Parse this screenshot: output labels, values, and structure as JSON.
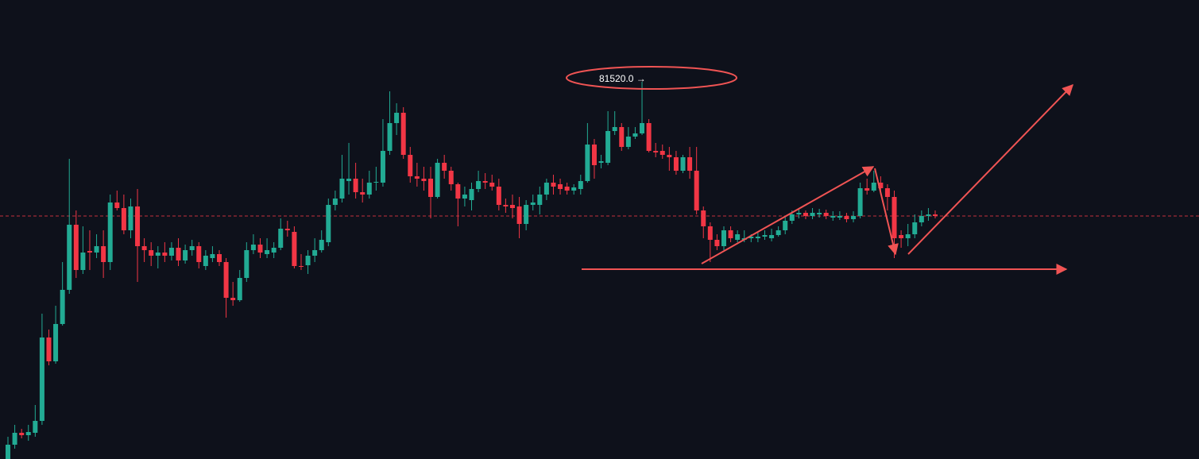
{
  "chart_data": {
    "type": "candlestick",
    "annotation": "81520.0 →",
    "colors": {
      "up": "#22ab94",
      "down": "#f23645"
    },
    "ylim": [
      76770,
      82550
    ],
    "price_line": 79830,
    "ohlc": [
      [
        76770,
        77050,
        76770,
        76950
      ],
      [
        76950,
        77200,
        76900,
        77100
      ],
      [
        77100,
        77150,
        77030,
        77070
      ],
      [
        77070,
        77200,
        77000,
        77110
      ],
      [
        77100,
        77450,
        77050,
        77250
      ],
      [
        77250,
        78600,
        77200,
        78300
      ],
      [
        78300,
        78400,
        77950,
        78000
      ],
      [
        78000,
        78700,
        77970,
        78470
      ],
      [
        78470,
        79250,
        78450,
        78900
      ],
      [
        78900,
        80550,
        78850,
        79720
      ],
      [
        79720,
        79900,
        79050,
        79150
      ],
      [
        79150,
        79700,
        79100,
        79370
      ],
      [
        79390,
        79650,
        79150,
        79370
      ],
      [
        79370,
        79600,
        79300,
        79450
      ],
      [
        79450,
        79650,
        79050,
        79250
      ],
      [
        79250,
        80100,
        79150,
        80000
      ],
      [
        80000,
        80150,
        79900,
        79930
      ],
      [
        79930,
        80100,
        79600,
        79650
      ],
      [
        79650,
        80050,
        79550,
        79950
      ],
      [
        79950,
        80170,
        79000,
        79450
      ],
      [
        79450,
        79550,
        79250,
        79400
      ],
      [
        79400,
        79500,
        79200,
        79330
      ],
      [
        79330,
        79450,
        79170,
        79370
      ],
      [
        79370,
        79500,
        79250,
        79330
      ],
      [
        79330,
        79500,
        79270,
        79430
      ],
      [
        79430,
        79550,
        79200,
        79270
      ],
      [
        79270,
        79470,
        79230,
        79400
      ],
      [
        79400,
        79530,
        79330,
        79450
      ],
      [
        79450,
        79500,
        79170,
        79250
      ],
      [
        79200,
        79400,
        79150,
        79330
      ],
      [
        79300,
        79450,
        79250,
        79350
      ],
      [
        79350,
        79400,
        79200,
        79250
      ],
      [
        79250,
        79300,
        78550,
        78800
      ],
      [
        78800,
        79000,
        78700,
        78770
      ],
      [
        78770,
        79150,
        78750,
        79050
      ],
      [
        79050,
        79500,
        79000,
        79400
      ],
      [
        79400,
        79600,
        79350,
        79470
      ],
      [
        79470,
        79550,
        79300,
        79370
      ],
      [
        79350,
        79550,
        79300,
        79400
      ],
      [
        79370,
        79500,
        79300,
        79430
      ],
      [
        79430,
        79800,
        79400,
        79670
      ],
      [
        79670,
        79770,
        79570,
        79650
      ],
      [
        79630,
        79700,
        79170,
        79200
      ],
      [
        79200,
        79350,
        79150,
        79190
      ],
      [
        79210,
        79400,
        79100,
        79330
      ],
      [
        79330,
        79550,
        79250,
        79400
      ],
      [
        79400,
        79650,
        79370,
        79530
      ],
      [
        79500,
        80050,
        79450,
        79970
      ],
      [
        79970,
        80150,
        79900,
        80050
      ],
      [
        80050,
        80600,
        80000,
        80300
      ],
      [
        80270,
        80750,
        80100,
        80300
      ],
      [
        80300,
        80500,
        80050,
        80130
      ],
      [
        80130,
        80300,
        80000,
        80100
      ],
      [
        80100,
        80400,
        80050,
        80250
      ],
      [
        80250,
        80450,
        80150,
        80260
      ],
      [
        80250,
        81050,
        80200,
        80650
      ],
      [
        80650,
        81400,
        80600,
        81000
      ],
      [
        81000,
        81250,
        80850,
        81130
      ],
      [
        81130,
        81200,
        80550,
        80600
      ],
      [
        80600,
        80700,
        80250,
        80330
      ],
      [
        80330,
        80500,
        80200,
        80300
      ],
      [
        80300,
        80450,
        80150,
        80270
      ],
      [
        80300,
        80450,
        79800,
        80070
      ],
      [
        80070,
        80550,
        80050,
        80500
      ],
      [
        80500,
        80600,
        80300,
        80400
      ],
      [
        80400,
        80450,
        80150,
        80230
      ],
      [
        80230,
        80250,
        79700,
        80050
      ],
      [
        80050,
        80200,
        79950,
        80100
      ],
      [
        80030,
        80250,
        79900,
        80170
      ],
      [
        80170,
        80400,
        80130,
        80270
      ],
      [
        80270,
        80370,
        80170,
        80250
      ],
      [
        80250,
        80350,
        80150,
        80200
      ],
      [
        80200,
        80300,
        79900,
        79970
      ],
      [
        79970,
        80050,
        79870,
        79950
      ],
      [
        79970,
        80100,
        79800,
        79930
      ],
      [
        79950,
        80070,
        79550,
        79730
      ],
      [
        79730,
        80030,
        79650,
        79970
      ],
      [
        79970,
        80100,
        79900,
        80000
      ],
      [
        79970,
        80200,
        79850,
        80100
      ],
      [
        80100,
        80300,
        80030,
        80250
      ],
      [
        80250,
        80350,
        80100,
        80200
      ],
      [
        80230,
        80300,
        80100,
        80170
      ],
      [
        80200,
        80250,
        80100,
        80150
      ],
      [
        80150,
        80230,
        80100,
        80190
      ],
      [
        80170,
        80350,
        80100,
        80270
      ],
      [
        80270,
        81000,
        80250,
        80730
      ],
      [
        80730,
        80800,
        80300,
        80470
      ],
      [
        80500,
        80600,
        80430,
        80520
      ],
      [
        80500,
        81150,
        80470,
        80900
      ],
      [
        80900,
        81150,
        80850,
        80950
      ],
      [
        80950,
        81000,
        80650,
        80700
      ],
      [
        80700,
        80950,
        80670,
        80830
      ],
      [
        80830,
        80950,
        80800,
        80870
      ],
      [
        80870,
        81520,
        80850,
        81000
      ],
      [
        81000,
        81050,
        80630,
        80650
      ],
      [
        80650,
        80750,
        80570,
        80630
      ],
      [
        80650,
        80730,
        80550,
        80600
      ],
      [
        80600,
        80700,
        80400,
        80570
      ],
      [
        80570,
        80650,
        80350,
        80400
      ],
      [
        80400,
        80600,
        80370,
        80570
      ],
      [
        80570,
        80700,
        80300,
        80400
      ],
      [
        80400,
        80700,
        79850,
        79900
      ],
      [
        79900,
        79950,
        79550,
        79700
      ],
      [
        79700,
        79750,
        79250,
        79530
      ],
      [
        79530,
        79600,
        79400,
        79450
      ],
      [
        79450,
        79700,
        79400,
        79650
      ],
      [
        79650,
        79700,
        79500,
        79550
      ],
      [
        79530,
        79650,
        79500,
        79600
      ],
      [
        79530,
        79650,
        79500,
        79550
      ],
      [
        79550,
        79600,
        79500,
        79570
      ],
      [
        79550,
        79630,
        79500,
        79570
      ],
      [
        79570,
        79650,
        79530,
        79590
      ],
      [
        79550,
        79670,
        79510,
        79590
      ],
      [
        79590,
        79700,
        79570,
        79650
      ],
      [
        79650,
        79830,
        79600,
        79770
      ],
      [
        79770,
        79900,
        79730,
        79850
      ],
      [
        79850,
        79930,
        79800,
        79870
      ],
      [
        79870,
        79900,
        79790,
        79830
      ],
      [
        79830,
        79930,
        79790,
        79870
      ],
      [
        79850,
        79920,
        79810,
        79870
      ],
      [
        79870,
        79910,
        79790,
        79830
      ],
      [
        79810,
        79890,
        79770,
        79830
      ],
      [
        79810,
        79890,
        79780,
        79830
      ],
      [
        79830,
        79870,
        79750,
        79790
      ],
      [
        79790,
        79890,
        79750,
        79830
      ],
      [
        79830,
        80250,
        79800,
        80180
      ],
      [
        80180,
        80300,
        80100,
        80150
      ],
      [
        80150,
        80400,
        80130,
        80250
      ],
      [
        80250,
        80330,
        80100,
        80180
      ],
      [
        80180,
        80230,
        79900,
        80070
      ],
      [
        80070,
        80150,
        79300,
        79550
      ],
      [
        79590,
        79650,
        79430,
        79550
      ],
      [
        79550,
        79730,
        79450,
        79600
      ],
      [
        79600,
        79850,
        79550,
        79750
      ],
      [
        79750,
        79900,
        79700,
        79830
      ],
      [
        79830,
        79930,
        79770,
        79850
      ],
      [
        79850,
        79900,
        79800,
        79830
      ]
    ]
  }
}
